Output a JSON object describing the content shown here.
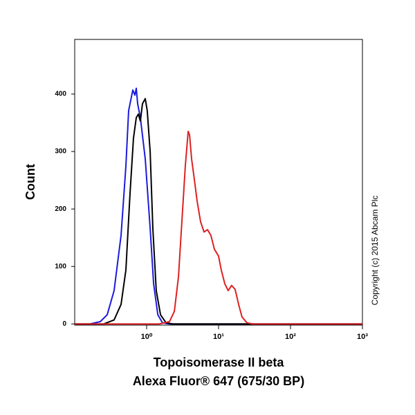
{
  "chart_data": {
    "type": "line",
    "xlabel": [
      "Topoisomerase II beta",
      "Alexa Fluor® 647 (675/30 BP)"
    ],
    "ylabel": "Count",
    "annotation": "Copyright (c) 2015 Abcam Plc",
    "xscale": "log",
    "xlim": [
      0.1,
      1000
    ],
    "xticks": [
      {
        "value": 1,
        "label": "10⁰"
      },
      {
        "value": 10,
        "label": "10¹"
      },
      {
        "value": 100,
        "label": "10²"
      },
      {
        "value": 1000,
        "label": "10³"
      }
    ],
    "ylim": [
      -2,
      495
    ],
    "yticks": [
      0,
      100,
      200,
      300,
      400
    ],
    "series": [
      {
        "color": "#1a1adc",
        "x": [
          0.1,
          0.163,
          0.227,
          0.283,
          0.353,
          0.441,
          0.515,
          0.562,
          0.601,
          0.643,
          0.687,
          0.718,
          0.75,
          0.818,
          0.957,
          1.12,
          1.25,
          1.43,
          1.66,
          2.08,
          1000
        ],
        "values": [
          0,
          0,
          4,
          16,
          58,
          154,
          275,
          371,
          389,
          407,
          398,
          410,
          383,
          359,
          287,
          166,
          70,
          16,
          2,
          0,
          0
        ]
      },
      {
        "color": "#000000",
        "x": [
          0.1,
          0.254,
          0.353,
          0.441,
          0.515,
          0.587,
          0.656,
          0.718,
          0.767,
          0.818,
          0.875,
          0.957,
          1.02,
          1.12,
          1.22,
          1.36,
          1.56,
          1.86,
          2.32,
          1000
        ],
        "values": [
          0,
          0,
          7,
          34,
          94,
          226,
          323,
          359,
          365,
          353,
          383,
          392,
          371,
          299,
          166,
          58,
          16,
          2,
          0,
          0
        ]
      },
      {
        "color": "#dd2020",
        "x": [
          0.1,
          1.49,
          2.08,
          2.43,
          2.77,
          3.09,
          3.45,
          3.78,
          3.95,
          4.22,
          4.61,
          5.03,
          5.62,
          6.28,
          7.02,
          7.83,
          8.75,
          10,
          10.9,
          12.2,
          13.6,
          15.2,
          17.0,
          19.0,
          21.2,
          24.8,
          29.6,
          1000
        ],
        "values": [
          0,
          0,
          4,
          22,
          82,
          178,
          275,
          335,
          329,
          287,
          251,
          214,
          178,
          160,
          164,
          154,
          130,
          118,
          94,
          70,
          58,
          67,
          60,
          34,
          12,
          2,
          0,
          0
        ]
      }
    ]
  }
}
